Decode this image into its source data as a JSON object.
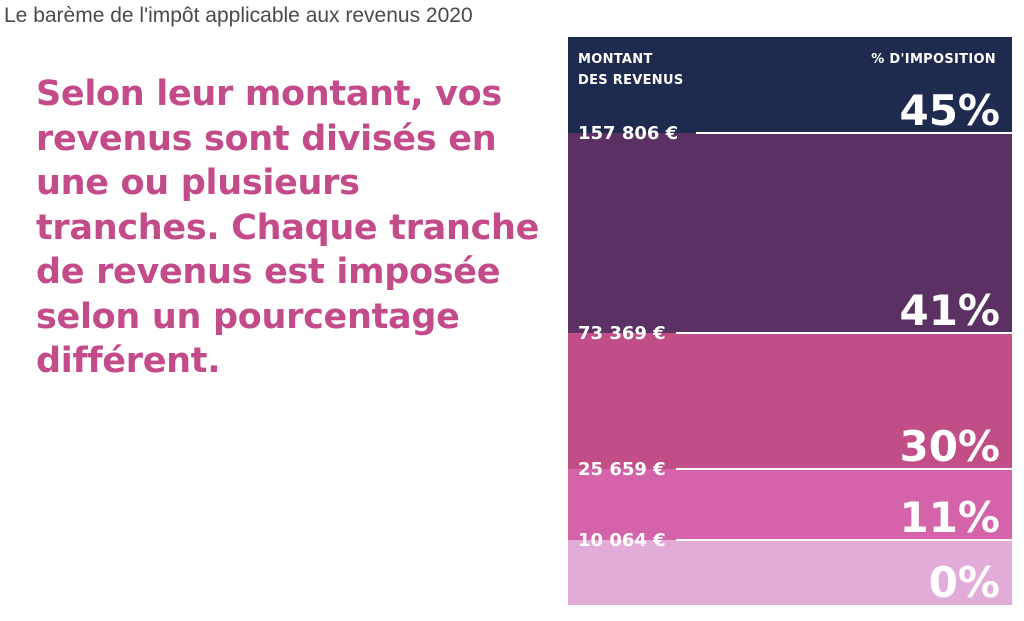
{
  "page": {
    "title": "Le barème de l'impôt applicable aux revenus 2020",
    "intro": "Selon leur montant, vos revenus sont divisés en une ou plusieurs tranches. Chaque tranche de revenus est imposée selon un pourcentage différent."
  },
  "chart_data": {
    "type": "table",
    "column_headers": {
      "amount_line1": "MONTANT",
      "amount_line2": "DES REVENUS",
      "rate": "% D'IMPOSITION"
    },
    "brackets": [
      {
        "rate": "45%",
        "rate_value": 45,
        "color": "#1e2a4e",
        "threshold_label": "157 806 €",
        "threshold_value": 157806
      },
      {
        "rate": "41%",
        "rate_value": 41,
        "color": "#5a3162",
        "threshold_label": "73 369 €",
        "threshold_value": 73369
      },
      {
        "rate": "30%",
        "rate_value": 30,
        "color": "#c24e88",
        "threshold_label": "25 659 €",
        "threshold_value": 25659
      },
      {
        "rate": "11%",
        "rate_value": 11,
        "color": "#d563a9",
        "threshold_label": "10 064 €",
        "threshold_value": 10064
      },
      {
        "rate": "0%",
        "rate_value": 0,
        "color": "#e1acd8",
        "threshold_label": "",
        "threshold_value": 0
      }
    ]
  }
}
